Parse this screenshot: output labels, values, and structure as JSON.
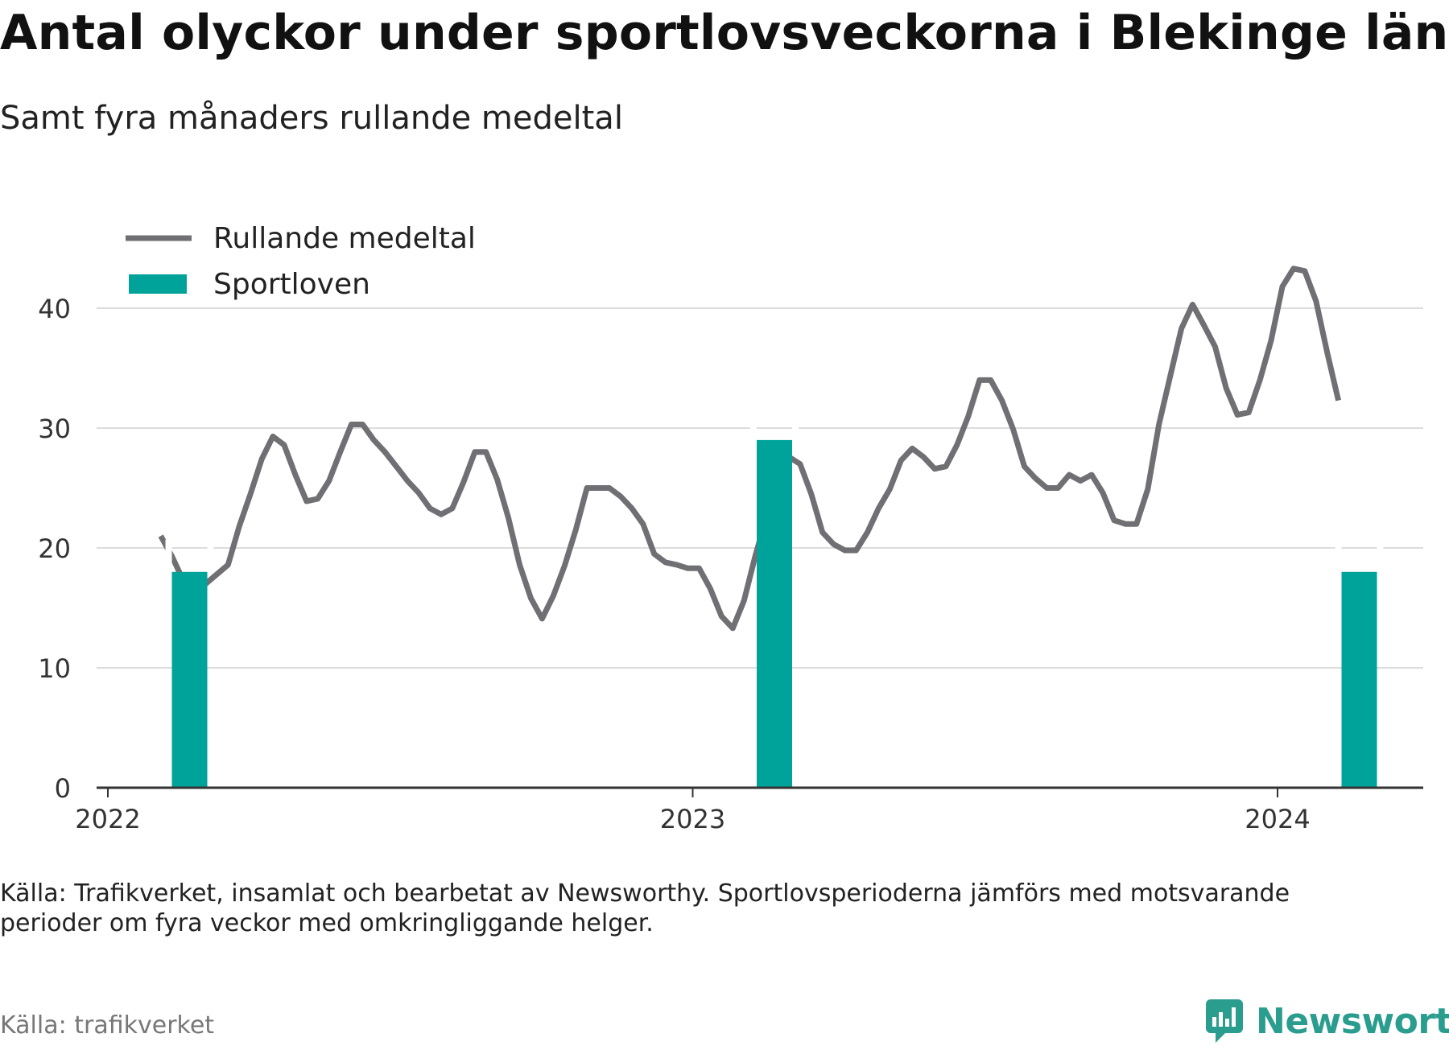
{
  "title": "Antal olyckor under sportlovsveckorna i Blekinge län",
  "subtitle": "Samt fyra månaders rullande medeltal",
  "source_note": "Källa: Trafikverket, insamlat och bearbetat av Newsworthy. Sportlovsperioderna jämförs med motsvarande perioder om fyra veckor med omkringliggande helger.",
  "credit": "Källa: trafikverket",
  "brand": {
    "name": "Newsworthy",
    "icon": "newsworthy-logo-icon",
    "color": "#2a9d8f"
  },
  "chart_data": {
    "type": "bar",
    "title": "Antal olyckor under sportlovsveckorna i Blekinge län",
    "subtitle": "Samt fyra månaders rullande medeltal",
    "grid": true,
    "legend_position": "top-left",
    "ylim": [
      0,
      45
    ],
    "yticks": [
      "0",
      "10",
      "20",
      "30",
      "40"
    ],
    "xticks": [
      "2022",
      "2023",
      "2024"
    ],
    "legend": [
      {
        "label": "Rullande medeltal",
        "type": "line",
        "color": "#707074"
      },
      {
        "label": "Sportloven",
        "type": "bar",
        "color": "#00a39a"
      }
    ],
    "series": [
      {
        "name": "Sportloven",
        "type": "bar",
        "color": "#00a39a",
        "points": [
          {
            "x": "2022-02-21",
            "y": 18
          },
          {
            "x": "2023-02-21",
            "y": 29
          },
          {
            "x": "2024-02-21",
            "y": 18
          }
        ]
      },
      {
        "name": "Rullande medeltal",
        "type": "line",
        "color": "#707074",
        "points": [
          {
            "x": "2022-02-03",
            "y": 21
          },
          {
            "x": "2022-02-10",
            "y": 19.3
          },
          {
            "x": "2022-02-17",
            "y": 17.3
          },
          {
            "x": "2022-02-24",
            "y": 17.0
          },
          {
            "x": "2022-03-03",
            "y": 17.0
          },
          {
            "x": "2022-03-10",
            "y": 17.8
          },
          {
            "x": "2022-03-17",
            "y": 18.6
          },
          {
            "x": "2022-03-24",
            "y": 21.8
          },
          {
            "x": "2022-03-31",
            "y": 24.5
          },
          {
            "x": "2022-04-07",
            "y": 27.4
          },
          {
            "x": "2022-04-14",
            "y": 29.3
          },
          {
            "x": "2022-04-21",
            "y": 28.6
          },
          {
            "x": "2022-04-28",
            "y": 26.1
          },
          {
            "x": "2022-05-05",
            "y": 23.9
          },
          {
            "x": "2022-05-12",
            "y": 24.1
          },
          {
            "x": "2022-05-19",
            "y": 25.6
          },
          {
            "x": "2022-05-26",
            "y": 28.0
          },
          {
            "x": "2022-06-02",
            "y": 30.3
          },
          {
            "x": "2022-06-09",
            "y": 30.3
          },
          {
            "x": "2022-06-16",
            "y": 29.0
          },
          {
            "x": "2022-06-23",
            "y": 28.0
          },
          {
            "x": "2022-06-30",
            "y": 26.8
          },
          {
            "x": "2022-07-07",
            "y": 25.6
          },
          {
            "x": "2022-07-14",
            "y": 24.6
          },
          {
            "x": "2022-07-21",
            "y": 23.3
          },
          {
            "x": "2022-07-28",
            "y": 22.8
          },
          {
            "x": "2022-08-04",
            "y": 23.3
          },
          {
            "x": "2022-08-11",
            "y": 25.5
          },
          {
            "x": "2022-08-18",
            "y": 28.0
          },
          {
            "x": "2022-08-25",
            "y": 28.0
          },
          {
            "x": "2022-09-01",
            "y": 25.7
          },
          {
            "x": "2022-09-08",
            "y": 22.5
          },
          {
            "x": "2022-09-15",
            "y": 18.6
          },
          {
            "x": "2022-09-22",
            "y": 15.8
          },
          {
            "x": "2022-09-29",
            "y": 14.1
          },
          {
            "x": "2022-10-06",
            "y": 16.0
          },
          {
            "x": "2022-10-13",
            "y": 18.5
          },
          {
            "x": "2022-10-20",
            "y": 21.5
          },
          {
            "x": "2022-10-27",
            "y": 25.0
          },
          {
            "x": "2022-11-03",
            "y": 25.0
          },
          {
            "x": "2022-11-10",
            "y": 25.0
          },
          {
            "x": "2022-11-17",
            "y": 24.3
          },
          {
            "x": "2022-11-24",
            "y": 23.3
          },
          {
            "x": "2022-12-01",
            "y": 22.0
          },
          {
            "x": "2022-12-08",
            "y": 19.5
          },
          {
            "x": "2022-12-15",
            "y": 18.8
          },
          {
            "x": "2022-12-22",
            "y": 18.6
          },
          {
            "x": "2022-12-29",
            "y": 18.3
          },
          {
            "x": "2023-01-05",
            "y": 18.3
          },
          {
            "x": "2023-01-12",
            "y": 16.6
          },
          {
            "x": "2023-01-19",
            "y": 14.3
          },
          {
            "x": "2023-01-26",
            "y": 13.3
          },
          {
            "x": "2023-02-02",
            "y": 15.6
          },
          {
            "x": "2023-02-09",
            "y": 19.3
          },
          {
            "x": "2023-02-16",
            "y": 22.6
          },
          {
            "x": "2023-02-23",
            "y": 25.8
          },
          {
            "x": "2023-03-02",
            "y": 27.6
          },
          {
            "x": "2023-03-09",
            "y": 27.0
          },
          {
            "x": "2023-03-16",
            "y": 24.5
          },
          {
            "x": "2023-03-23",
            "y": 21.3
          },
          {
            "x": "2023-03-30",
            "y": 20.3
          },
          {
            "x": "2023-04-06",
            "y": 19.8
          },
          {
            "x": "2023-04-13",
            "y": 19.8
          },
          {
            "x": "2023-04-20",
            "y": 21.3
          },
          {
            "x": "2023-04-27",
            "y": 23.3
          },
          {
            "x": "2023-05-04",
            "y": 24.9
          },
          {
            "x": "2023-05-11",
            "y": 27.3
          },
          {
            "x": "2023-05-18",
            "y": 28.3
          },
          {
            "x": "2023-05-25",
            "y": 27.6
          },
          {
            "x": "2023-06-01",
            "y": 26.6
          },
          {
            "x": "2023-06-08",
            "y": 26.8
          },
          {
            "x": "2023-06-15",
            "y": 28.6
          },
          {
            "x": "2023-06-22",
            "y": 31.0
          },
          {
            "x": "2023-06-29",
            "y": 34.0
          },
          {
            "x": "2023-07-06",
            "y": 34.0
          },
          {
            "x": "2023-07-13",
            "y": 32.3
          },
          {
            "x": "2023-07-20",
            "y": 29.9
          },
          {
            "x": "2023-07-27",
            "y": 26.8
          },
          {
            "x": "2023-08-03",
            "y": 25.8
          },
          {
            "x": "2023-08-10",
            "y": 25.0
          },
          {
            "x": "2023-08-17",
            "y": 25.0
          },
          {
            "x": "2023-08-24",
            "y": 26.1
          },
          {
            "x": "2023-08-31",
            "y": 25.6
          },
          {
            "x": "2023-09-07",
            "y": 26.1
          },
          {
            "x": "2023-09-14",
            "y": 24.6
          },
          {
            "x": "2023-09-21",
            "y": 22.3
          },
          {
            "x": "2023-09-28",
            "y": 22.0
          },
          {
            "x": "2023-10-05",
            "y": 22.0
          },
          {
            "x": "2023-10-12",
            "y": 24.9
          },
          {
            "x": "2023-10-19",
            "y": 30.3
          },
          {
            "x": "2023-10-26",
            "y": 34.3
          },
          {
            "x": "2023-11-02",
            "y": 38.3
          },
          {
            "x": "2023-11-09",
            "y": 40.3
          },
          {
            "x": "2023-11-16",
            "y": 38.6
          },
          {
            "x": "2023-11-23",
            "y": 36.8
          },
          {
            "x": "2023-11-30",
            "y": 33.3
          },
          {
            "x": "2023-12-07",
            "y": 31.1
          },
          {
            "x": "2023-12-14",
            "y": 31.3
          },
          {
            "x": "2023-12-21",
            "y": 34.0
          },
          {
            "x": "2023-12-28",
            "y": 37.3
          },
          {
            "x": "2024-01-04",
            "y": 41.8
          },
          {
            "x": "2024-01-11",
            "y": 43.3
          },
          {
            "x": "2024-01-18",
            "y": 43.1
          },
          {
            "x": "2024-01-25",
            "y": 40.6
          },
          {
            "x": "2024-02-01",
            "y": 36.3
          },
          {
            "x": "2024-02-08",
            "y": 32.3
          }
        ]
      }
    ]
  }
}
